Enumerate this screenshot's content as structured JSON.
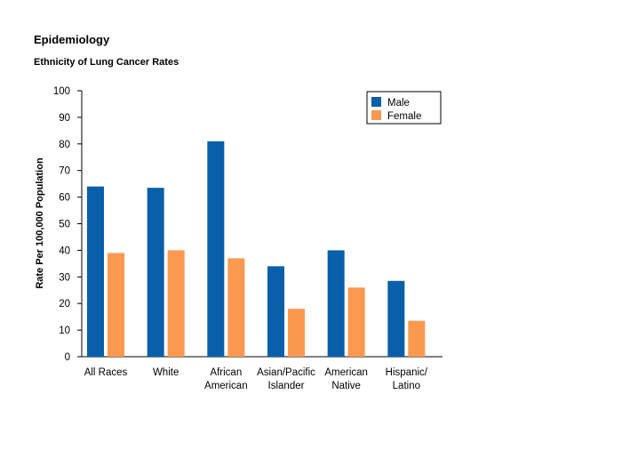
{
  "header": {
    "title": "Epidemiology",
    "subtitle": "Ethnicity of Lung Cancer Rates"
  },
  "colors": {
    "male": "#0a5fab",
    "female": "#fb9950",
    "axis": "#000000"
  },
  "chart_data": {
    "type": "bar",
    "title": "Ethnicity of Lung Cancer Rates",
    "xlabel": "",
    "ylabel": "Rate Per 100,000 Population",
    "ylim": [
      0,
      100
    ],
    "yticks": [
      0,
      10,
      20,
      30,
      40,
      50,
      60,
      70,
      80,
      90,
      100
    ],
    "categories": [
      [
        "All Races"
      ],
      [
        "White"
      ],
      [
        "African",
        "American"
      ],
      [
        "Asian/Pacific",
        "Islander"
      ],
      [
        "American",
        "Native"
      ],
      [
        "Hispanic/",
        "Latino"
      ]
    ],
    "series": [
      {
        "name": "Male",
        "color": "#0a5fab",
        "values": [
          64,
          63.5,
          81,
          34,
          40,
          28.5
        ]
      },
      {
        "name": "Female",
        "color": "#fb9950",
        "values": [
          39,
          40,
          37,
          18,
          26,
          13.5
        ]
      }
    ],
    "grid": false,
    "legend": {
      "position": "top-right",
      "entries": [
        "Male",
        "Female"
      ]
    }
  }
}
